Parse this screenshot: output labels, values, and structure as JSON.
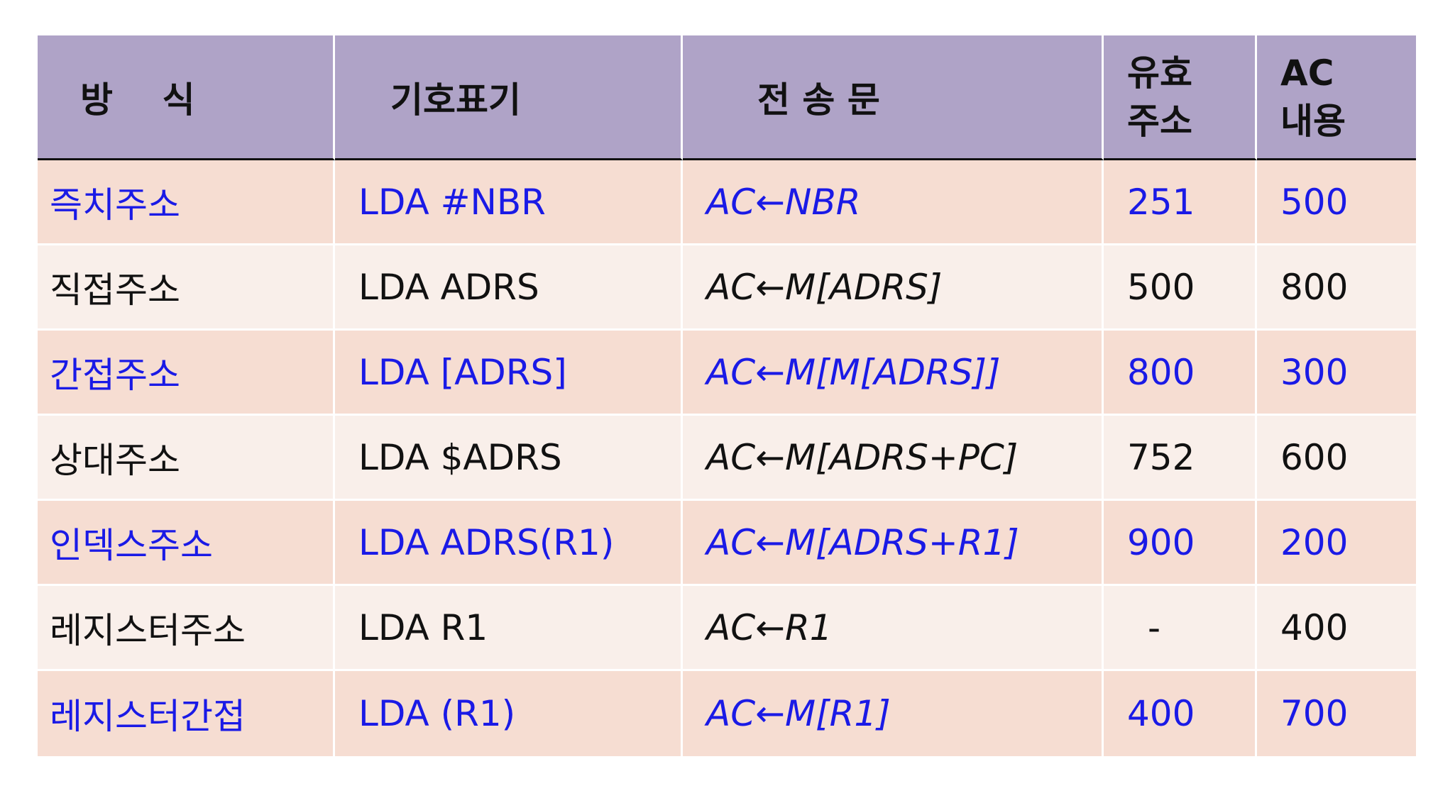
{
  "table": {
    "headers": [
      "방    식",
      "기호표기",
      "전 송 문",
      "유효\n주소",
      "AC\n내용"
    ],
    "rows": [
      {
        "mode": "즉치주소",
        "notation": "LDA #NBR",
        "transfer": "AC←NBR",
        "effective_address": "251",
        "ac_content": "500",
        "highlight": true
      },
      {
        "mode": "직접주소",
        "notation": "LDA ADRS",
        "transfer": "AC←M[ADRS]",
        "effective_address": "500",
        "ac_content": "800",
        "highlight": false
      },
      {
        "mode": "간접주소",
        "notation": "LDA [ADRS]",
        "transfer": "AC←M[M[ADRS]]",
        "effective_address": "800",
        "ac_content": "300",
        "highlight": true
      },
      {
        "mode": "상대주소",
        "notation": "LDA $ADRS",
        "transfer": "AC←M[ADRS+PC]",
        "effective_address": "752",
        "ac_content": "600",
        "highlight": false
      },
      {
        "mode": "인덱스주소",
        "notation": "LDA ADRS(R1)",
        "transfer": "AC←M[ADRS+R1]",
        "effective_address": "900",
        "ac_content": "200",
        "highlight": true
      },
      {
        "mode": "레지스터주소",
        "notation": "LDA R1",
        "transfer": "AC←R1",
        "effective_address": "-",
        "ac_content": "400",
        "highlight": false
      },
      {
        "mode": "레지스터간접",
        "notation": "LDA (R1)",
        "transfer": "AC←M[R1]",
        "effective_address": "400",
        "ac_content": "700",
        "highlight": true
      }
    ]
  },
  "colors": {
    "header_bg": "#afa3c7",
    "highlight_text": "#1a1ae6",
    "normal_text": "#111111",
    "row_odd_bg": "#f6ddd2",
    "row_even_bg": "#f9efea"
  }
}
